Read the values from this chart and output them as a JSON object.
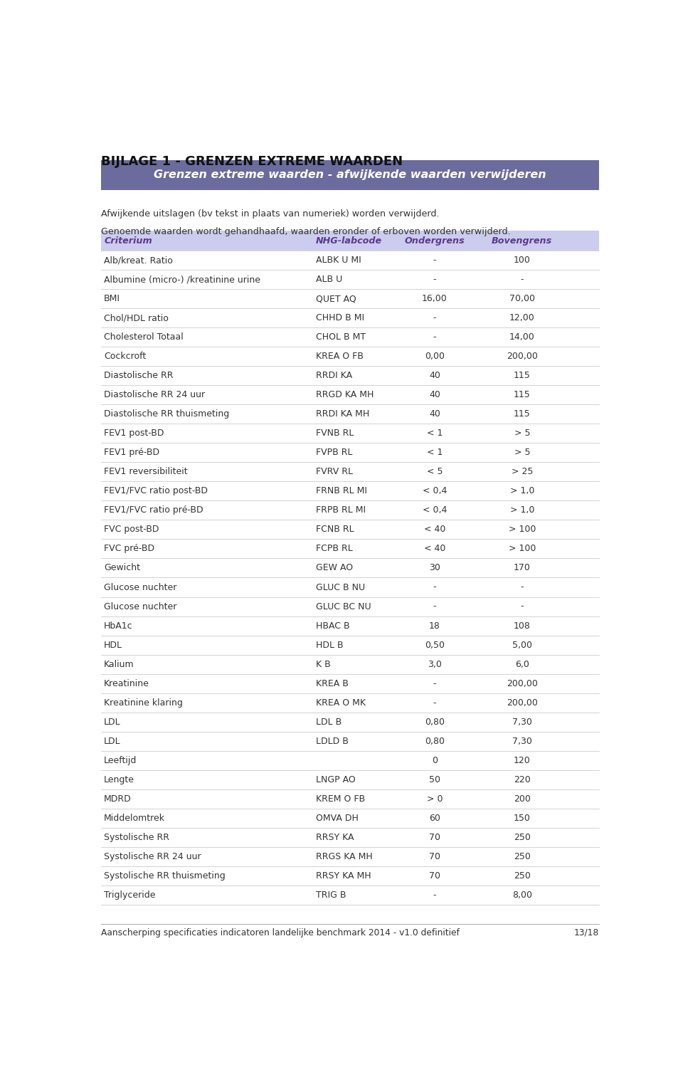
{
  "page_title": "BIJLAGE 1 - GRENZEN EXTREME WAARDEN",
  "section_title": "Grenzen extreme waarden - afwijkende waarden verwijderen",
  "section_title_bg": "#6b6b9e",
  "section_title_color": "#ffffff",
  "description_lines": [
    "Afwijkende uitslagen (bv tekst in plaats van numeriek) worden verwijderd.",
    "Genoemde waarden wordt gehandhaafd, waarden eronder of erboven worden verwijderd."
  ],
  "col_header_bg": "#ccccee",
  "col_header_color": "#5a3a8e",
  "col_headers": [
    "Criterium",
    "NHG-labcode",
    "Ondergrens",
    "Bovengrens"
  ],
  "rows": [
    [
      "Alb/kreat. Ratio",
      "ALBK U MI",
      "-",
      "100"
    ],
    [
      "Albumine (micro-) /kreatinine urine",
      "ALB U",
      "-",
      "-"
    ],
    [
      "BMI",
      "QUET AQ",
      "16,00",
      "70,00"
    ],
    [
      "Chol/HDL ratio",
      "CHHD B MI",
      "-",
      "12,00"
    ],
    [
      "Cholesterol Totaal",
      "CHOL B MT",
      "-",
      "14,00"
    ],
    [
      "Cockcroft",
      "KREA O FB",
      "0,00",
      "200,00"
    ],
    [
      "Diastolische RR",
      "RRDI KA",
      "40",
      "115"
    ],
    [
      "Diastolische RR 24 uur",
      "RRGD KA MH",
      "40",
      "115"
    ],
    [
      "Diastolische RR thuismeting",
      "RRDI KA MH",
      "40",
      "115"
    ],
    [
      "FEV1 post-BD",
      "FVNB RL",
      "< 1",
      "> 5"
    ],
    [
      "FEV1 pré-BD",
      "FVPB RL",
      "< 1",
      "> 5"
    ],
    [
      "FEV1 reversibiliteit",
      "FVRV RL",
      "< 5",
      "> 25"
    ],
    [
      "FEV1/FVC ratio post-BD",
      "FRNB RL MI",
      "< 0,4",
      "> 1,0"
    ],
    [
      "FEV1/FVC ratio pré-BD",
      "FRPB RL MI",
      "< 0,4",
      "> 1,0"
    ],
    [
      "FVC post-BD",
      "FCNB RL",
      "< 40",
      "> 100"
    ],
    [
      "FVC pré-BD",
      "FCPB RL",
      "< 40",
      "> 100"
    ],
    [
      "Gewicht",
      "GEW AO",
      "30",
      "170"
    ],
    [
      "Glucose nuchter",
      "GLUC B NU",
      "-",
      "-"
    ],
    [
      "Glucose nuchter",
      "GLUC BC NU",
      "-",
      "-"
    ],
    [
      "HbA1c",
      "HBAC B",
      "18",
      "108"
    ],
    [
      "HDL",
      "HDL B",
      "0,50",
      "5,00"
    ],
    [
      "Kalium",
      "K B",
      "3,0",
      "6,0"
    ],
    [
      "Kreatinine",
      "KREA B",
      "-",
      "200,00"
    ],
    [
      "Kreatinine klaring",
      "KREA O MK",
      "-",
      "200,00"
    ],
    [
      "LDL",
      "LDL B",
      "0,80",
      "7,30"
    ],
    [
      "LDL",
      "LDLD B",
      "0,80",
      "7,30"
    ],
    [
      "Leeftijd",
      "",
      "0",
      "120"
    ],
    [
      "Lengte",
      "LNGP AO",
      "50",
      "220"
    ],
    [
      "MDRD",
      "KREM O FB",
      "> 0",
      "200"
    ],
    [
      "Middelomtrek",
      "OMVA DH",
      "60",
      "150"
    ],
    [
      "Systolische RR",
      "RRSY KA",
      "70",
      "250"
    ],
    [
      "Systolische RR 24 uur",
      "RRGS KA MH",
      "70",
      "250"
    ],
    [
      "Systolische RR thuismeting",
      "RRSY KA MH",
      "70",
      "250"
    ],
    [
      "Triglyceride",
      "TRIG B",
      "-",
      "8,00"
    ]
  ],
  "row_line_color": "#cccccc",
  "text_color": "#333333",
  "footer_left": "Aanscherping specificaties indicatoren landelijke benchmark 2014 - v1.0 definitief",
  "footer_right": "13/18",
  "bg_color": "#ffffff"
}
